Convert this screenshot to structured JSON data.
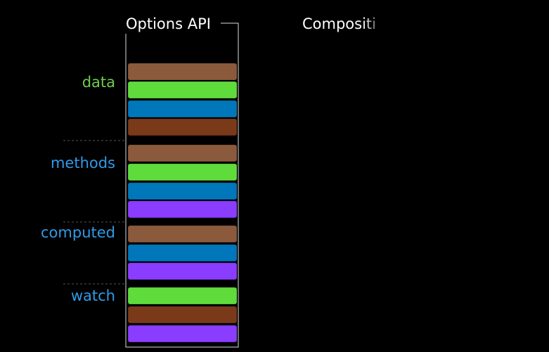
{
  "columns": [
    {
      "title": "Options API"
    },
    {
      "title": "Compositi"
    }
  ],
  "sections": [
    {
      "label": "data"
    },
    {
      "label": "methods"
    },
    {
      "label": "computed"
    },
    {
      "label": "watch"
    }
  ]
}
